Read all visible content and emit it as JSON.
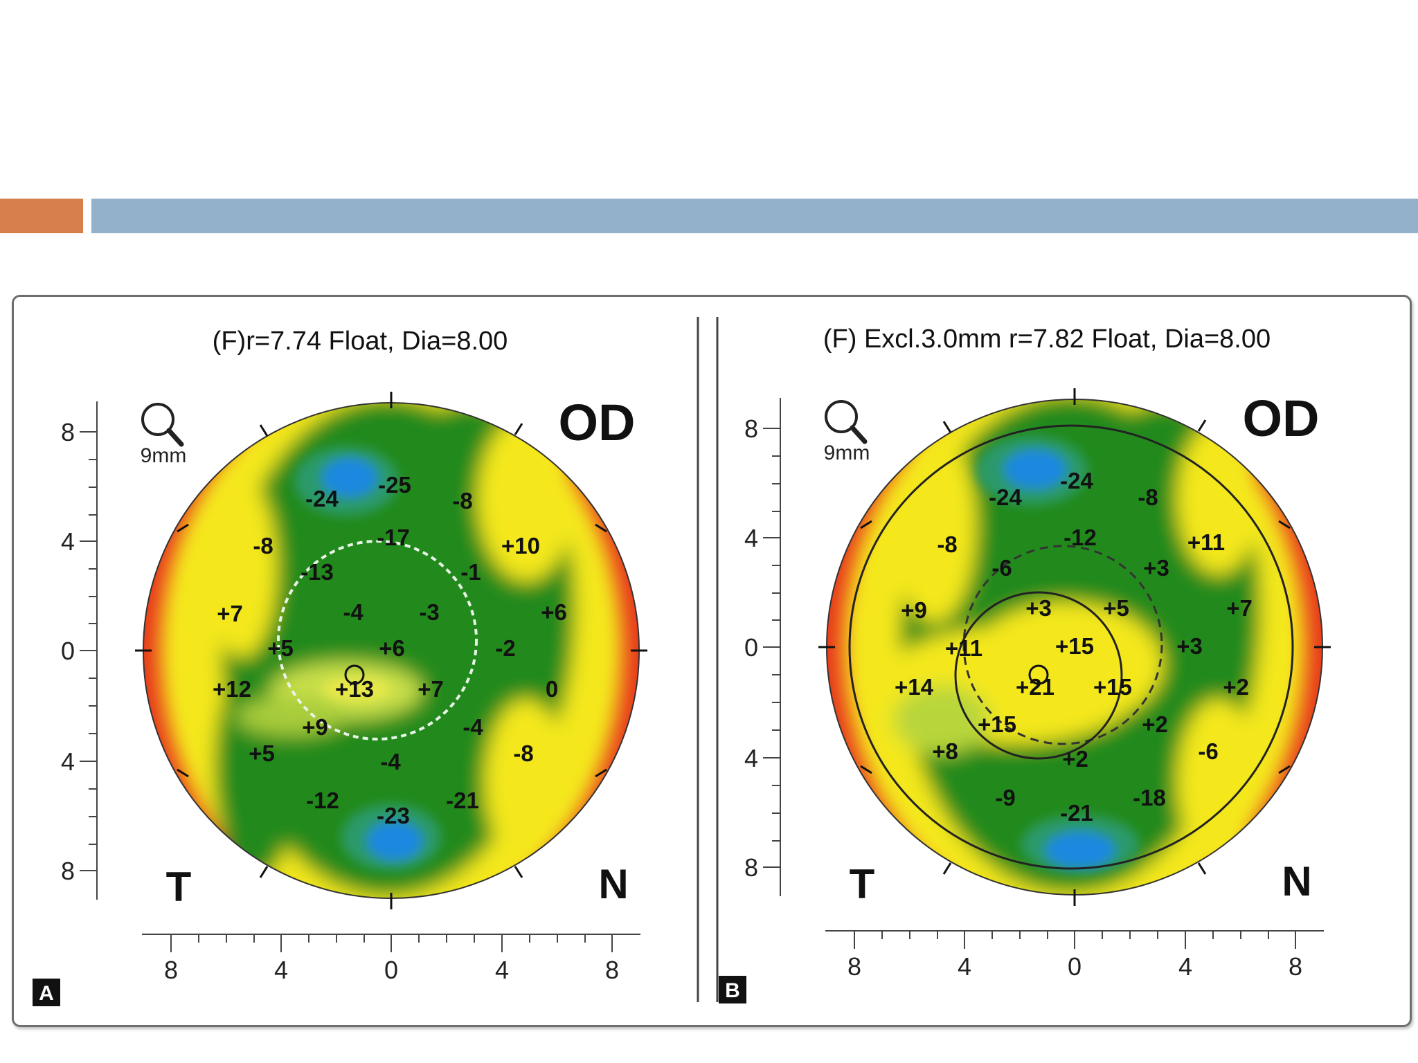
{
  "slide": {
    "accent_color": "#d8804b",
    "title_bar_color": "#93b1cb"
  },
  "panels": [
    {
      "id": "A",
      "badge": "A",
      "title": "(F)r=7.74 Float, Dia=8.00",
      "eye": "OD",
      "temporal_label": "T",
      "nasal_label": "N",
      "zoom_label": "9mm",
      "y_ticks": [
        "8",
        "4",
        "0",
        "4",
        "8"
      ],
      "x_ticks": [
        "8",
        "4",
        "0",
        "4",
        "8"
      ],
      "values": [
        "-25",
        "-24",
        "-8",
        "-8",
        "-17",
        "+10",
        "-13",
        "-1",
        "+7",
        "-4",
        "-3",
        "+6",
        "+5",
        "+6",
        "-2",
        "+12",
        "+13",
        "+7",
        "0",
        "+9",
        "-4",
        "+5",
        "-4",
        "-8",
        "-12",
        "-21",
        "-23"
      ]
    },
    {
      "id": "B",
      "badge": "B",
      "title": "(F) Excl.3.0mm  r=7.82 Float, Dia=8.00",
      "eye": "OD",
      "temporal_label": "T",
      "nasal_label": "N",
      "zoom_label": "9mm",
      "y_ticks": [
        "8",
        "4",
        "0",
        "4",
        "8"
      ],
      "x_ticks": [
        "8",
        "4",
        "0",
        "4",
        "8"
      ],
      "values": [
        "-24",
        "-24",
        "-8",
        "-8",
        "-12",
        "+11",
        "-6",
        "+3",
        "+9",
        "+3",
        "+5",
        "+7",
        "+11",
        "+15",
        "+3",
        "+14",
        "+21",
        "+15",
        "+2",
        "+15",
        "+2",
        "+8",
        "+2",
        "-6",
        "-9",
        "-18",
        "-21"
      ]
    }
  ]
}
